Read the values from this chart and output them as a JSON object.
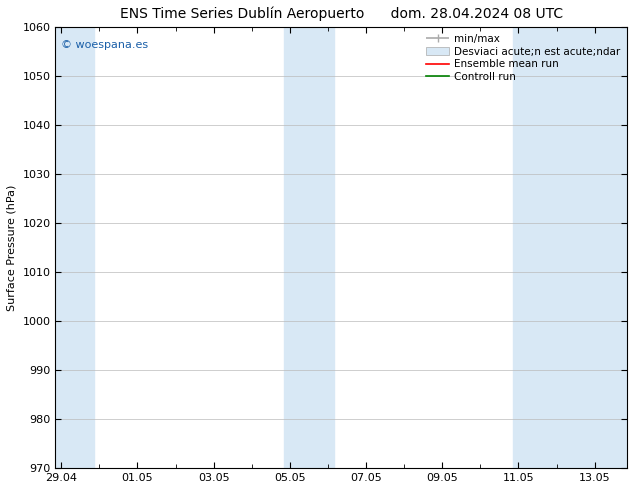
{
  "title_left": "ENS Time Series Dublín Aeropuerto",
  "title_right": "dom. 28.04.2024 08 UTC",
  "ylabel": "Surface Pressure (hPa)",
  "ylim": [
    970,
    1060
  ],
  "yticks": [
    970,
    980,
    990,
    1000,
    1010,
    1020,
    1030,
    1040,
    1050,
    1060
  ],
  "xtick_labels": [
    "29.04",
    "01.05",
    "03.05",
    "05.05",
    "07.05",
    "09.05",
    "11.05",
    "13.05"
  ],
  "xtick_positions": [
    0,
    2,
    4,
    6,
    8,
    10,
    12,
    14
  ],
  "xlim": [
    -0.15,
    14.85
  ],
  "shaded_regions": [
    {
      "x_start": -0.15,
      "x_end": 0.85
    },
    {
      "x_start": 5.85,
      "x_end": 7.15
    },
    {
      "x_start": 11.85,
      "x_end": 14.85
    }
  ],
  "shaded_color": "#d8e8f5",
  "watermark_text": "© woespana.es",
  "watermark_color": "#1a5fa8",
  "legend_labels": [
    "min/max",
    "Desviaci acute;n est acute;ndar",
    "Ensemble mean run",
    "Controll run"
  ],
  "legend_colors": [
    "#aaaaaa",
    "#d8e8f5",
    "red",
    "green"
  ],
  "bg_color": "#ffffff",
  "grid_color": "#bbbbbb",
  "title_fontsize": 10,
  "ylabel_fontsize": 8,
  "tick_fontsize": 8,
  "legend_fontsize": 7.5,
  "watermark_fontsize": 8
}
